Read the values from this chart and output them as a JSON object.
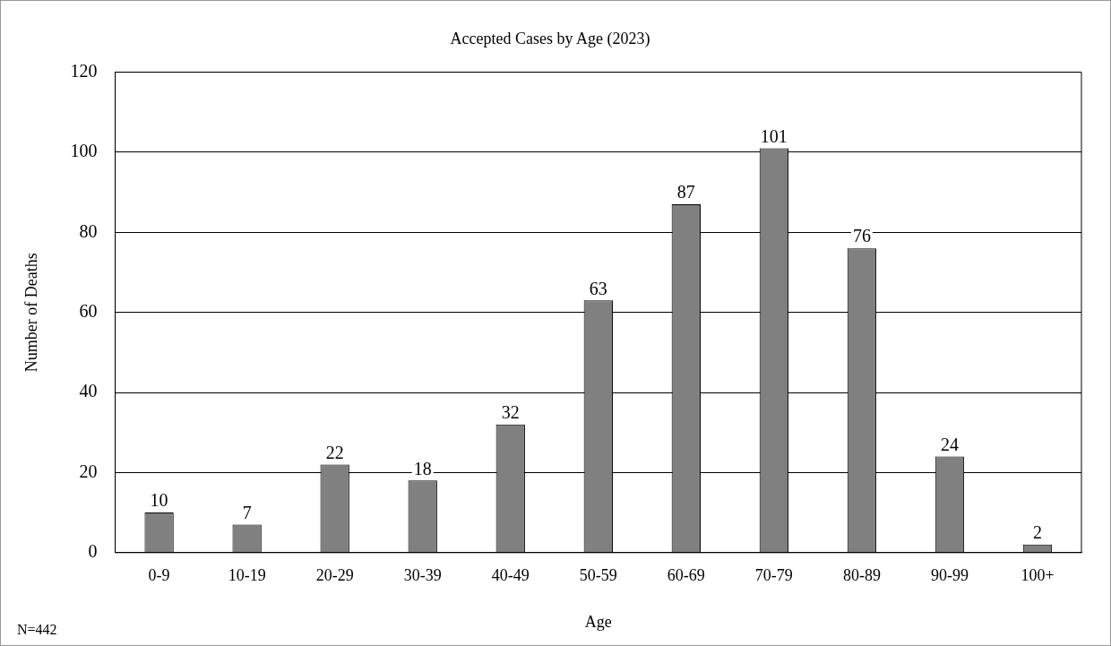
{
  "chart_data": {
    "type": "bar",
    "title": "Accepted Cases by Age (2023)",
    "xlabel": "Age",
    "ylabel": "Number of Deaths",
    "categories": [
      "0-9",
      "10-19",
      "20-29",
      "30-39",
      "40-49",
      "50-59",
      "60-69",
      "70-79",
      "80-89",
      "90-99",
      "100+"
    ],
    "values": [
      10,
      7,
      22,
      18,
      32,
      63,
      87,
      101,
      76,
      24,
      2
    ],
    "color": "#808080",
    "ylim": [
      0,
      120
    ],
    "yticks": [
      0,
      20,
      40,
      60,
      80,
      100,
      120
    ],
    "grid": "y",
    "data_labels": true,
    "legend": false,
    "annotations": [
      "N=442"
    ]
  }
}
